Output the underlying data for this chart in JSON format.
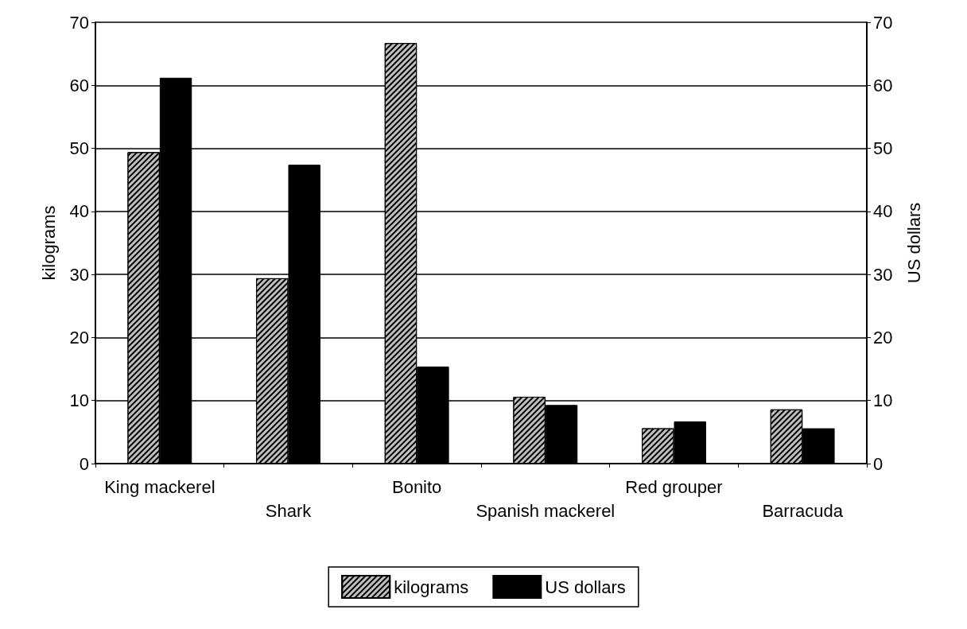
{
  "chart_data": {
    "type": "bar",
    "categories": [
      "King mackerel",
      "Shark",
      "Bonito",
      "Spanish mackerel",
      "Red grouper",
      "Barracuda"
    ],
    "series": [
      {
        "name": "kilograms",
        "color": "#bfbfbf",
        "values": [
          49.4,
          29.4,
          66.7,
          10.6,
          5.6,
          8.6
        ]
      },
      {
        "name": "US dollars",
        "color": "#000000",
        "axis": "y2",
        "values": [
          61.2,
          47.4,
          15.4,
          9.3,
          6.7,
          5.6
        ]
      }
    ],
    "ylabel": "kilograms",
    "y2label": "US dollars",
    "ylim": [
      0,
      70
    ],
    "yticks": [
      0,
      10,
      20,
      30,
      40,
      50,
      60,
      70
    ],
    "y2lim": [
      0,
      70
    ],
    "y2ticks": [
      0,
      10,
      20,
      30,
      40,
      50,
      60,
      70
    ],
    "grid": "y",
    "legend": "bottom"
  }
}
